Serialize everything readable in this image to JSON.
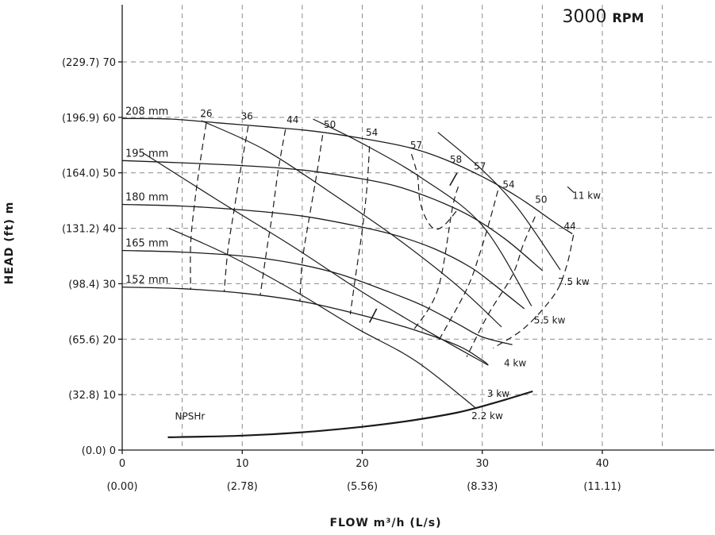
{
  "chart_data": {
    "type": "line",
    "speed_value": "3000",
    "speed_unit": "RPM",
    "xlabel": "FLOW m³/h (L/s)",
    "ylabel": "HEAD (ft) m",
    "xlim": [
      0,
      50
    ],
    "ylim": [
      0,
      80
    ],
    "grid": true,
    "x_ticks": [
      0,
      10,
      20,
      30,
      40
    ],
    "x_tick_labels": [
      "0",
      "10",
      "20",
      "30",
      "40"
    ],
    "x_tick_sublabels": [
      "(0.00)",
      "(2.78)",
      "(5.56)",
      "(8.33)",
      "(11.11)"
    ],
    "x_grid": [
      0,
      5,
      10,
      15,
      20,
      25,
      30,
      35,
      40,
      45
    ],
    "y_ticks": [
      0,
      10,
      20,
      30,
      40,
      50,
      60,
      70
    ],
    "y_tick_labels": [
      "(0.0) 0",
      "(32.8) 10",
      "(65.6) 20",
      "(98.4) 30",
      "(131.2) 40",
      "(164.0) 50",
      "(196.9) 60",
      "(229.7) 70"
    ],
    "head_curves": [
      {
        "name": "208 mm",
        "x": [
          0,
          4,
          8,
          12,
          16,
          20,
          24,
          27,
          30,
          33,
          36,
          37.5
        ],
        "y": [
          59.8,
          59.7,
          59.0,
          58.3,
          57.5,
          56.2,
          54.5,
          52.3,
          49.3,
          45.6,
          41.1,
          39.0
        ]
      },
      {
        "name": "195 mm",
        "x": [
          0,
          5,
          10,
          15,
          20,
          23,
          26,
          29,
          32,
          35
        ],
        "y": [
          52.2,
          51.8,
          51.3,
          50.5,
          48.9,
          47.5,
          45.2,
          42.2,
          37.9,
          32.4
        ]
      },
      {
        "name": "180 mm",
        "x": [
          0,
          5,
          10,
          15,
          20,
          23,
          26,
          29,
          31,
          33.5
        ],
        "y": [
          44.3,
          44.0,
          43.3,
          42.2,
          40.2,
          38.6,
          36.3,
          33.0,
          29.8,
          25.5
        ]
      },
      {
        "name": "165 mm",
        "x": [
          0,
          5,
          10,
          14,
          18,
          22,
          25,
          28,
          30,
          32.5
        ],
        "y": [
          36.0,
          35.7,
          35.0,
          33.8,
          31.8,
          28.7,
          26.1,
          22.7,
          20.4,
          19.0
        ]
      },
      {
        "name": "152 mm",
        "x": [
          0,
          5,
          10,
          15,
          20,
          24,
          28,
          30,
          30.5
        ],
        "y": [
          29.4,
          29.1,
          28.3,
          26.8,
          24.3,
          21.9,
          18.8,
          16.2,
          15.3
        ]
      }
    ],
    "efficiency_curves": [
      {
        "label": "26",
        "x": [
          7,
          6.5,
          6.0,
          5.7,
          5.7
        ],
        "y": [
          58.9,
          52.0,
          44.0,
          37.0,
          29.0
        ]
      },
      {
        "label": "36",
        "x": [
          10.5,
          9.9,
          9.3,
          8.8,
          8.5
        ],
        "y": [
          58.4,
          51.0,
          43.0,
          36.0,
          28.7
        ]
      },
      {
        "label": "44",
        "x": [
          13.6,
          13.0,
          12.5,
          12.0,
          11.5
        ],
        "y": [
          57.8,
          50.5,
          42.5,
          35.5,
          27.9
        ]
      },
      {
        "label": "50",
        "x": [
          16.7,
          16.2,
          15.6,
          15.0,
          14.8
        ],
        "y": [
          56.8,
          49.7,
          42.1,
          34.0,
          26.8
        ]
      },
      {
        "label": "54",
        "x": [
          20.6,
          20.4,
          20.0,
          19.5,
          19.0
        ],
        "y": [
          54.8,
          47.5,
          39.7,
          32.2,
          24.5
        ]
      },
      {
        "label": "57 (inner)",
        "x": [
          24.1,
          24.6,
          24.8,
          25.3,
          26.0,
          26.8,
          28.0
        ],
        "y": [
          53.4,
          49.5,
          45.0,
          41.8,
          39.9,
          40.5,
          43.5
        ]
      },
      {
        "label": "57",
        "x": [
          28.0,
          27.5,
          26.3,
          24.3
        ],
        "y": [
          47.5,
          43.5,
          29.0,
          21.7
        ]
      },
      {
        "label": "54",
        "x": [
          31.3,
          30.7,
          29.8,
          28.7,
          26.3
        ],
        "y": [
          46.8,
          42.0,
          35.5,
          29.0,
          19.5
        ]
      },
      {
        "label": "50",
        "x": [
          34.4,
          33.4,
          32.5,
          30.5,
          28.7
        ],
        "y": [
          42.1,
          37.0,
          31.5,
          24.5,
          16.8
        ]
      },
      {
        "label": "44",
        "x": [
          37.6,
          37.0,
          36.0,
          33.5,
          30.9
        ],
        "y": [
          38.8,
          33.0,
          28.0,
          22.0,
          18.4
        ]
      }
    ],
    "efficiency_labels": [
      {
        "text": "26",
        "x": 7.0,
        "y": 60.1
      },
      {
        "text": "36",
        "x": 10.4,
        "y": 59.6
      },
      {
        "text": "44",
        "x": 14.2,
        "y": 59.0
      },
      {
        "text": "50",
        "x": 17.3,
        "y": 58.1
      },
      {
        "text": "54",
        "x": 20.8,
        "y": 56.7
      },
      {
        "text": "57",
        "x": 24.5,
        "y": 54.4
      },
      {
        "text": "58",
        "x": 27.8,
        "y": 51.8
      },
      {
        "text": "57",
        "x": 29.8,
        "y": 50.6
      },
      {
        "text": "54",
        "x": 32.2,
        "y": 47.3
      },
      {
        "text": "50",
        "x": 34.9,
        "y": 44.6
      },
      {
        "text": "44",
        "x": 37.3,
        "y": 39.8
      }
    ],
    "power_curves": [
      {
        "name": "11 kw",
        "x": [
          37.1,
          37.6
        ],
        "y": [
          47.5,
          46.5
        ]
      },
      {
        "name": "7.5 kw",
        "x": [
          26.3,
          30.0,
          33.0,
          36.5
        ],
        "y": [
          57.3,
          50.5,
          43.5,
          32.5
        ]
      },
      {
        "name": "5.5 kw",
        "x": [
          15.9,
          20.0,
          25.0,
          30.0,
          34.1
        ],
        "y": [
          59.7,
          55.3,
          49.0,
          40.5,
          26.0
        ]
      },
      {
        "name": "4 kw",
        "x": [
          6.6,
          12.0,
          18.0,
          23.0,
          28.0,
          31.6
        ],
        "y": [
          59.4,
          54.0,
          45.5,
          38.0,
          29.5,
          22.2
        ]
      },
      {
        "name": "3 kw",
        "x": [
          1.8,
          8.0,
          14.0,
          20.0,
          25.0,
          30.5
        ],
        "y": [
          53.5,
          45.0,
          37.0,
          28.5,
          22.0,
          15.3
        ]
      },
      {
        "name": "2.2 kw",
        "x": [
          3.9,
          9.0,
          14.5,
          19.5,
          24.5,
          29.5
        ],
        "y": [
          40.0,
          35.0,
          28.5,
          22.0,
          16.0,
          7.5
        ]
      }
    ],
    "power_labels": [
      {
        "text": "11 kw",
        "x": 37.5,
        "y": 45.3
      },
      {
        "text": "7.5 kw",
        "x": 36.3,
        "y": 29.8
      },
      {
        "text": "5.5 kw",
        "x": 34.3,
        "y": 22.8
      },
      {
        "text": "4 kw",
        "x": 31.8,
        "y": 15.1
      },
      {
        "text": "3 kw",
        "x": 30.4,
        "y": 9.6
      },
      {
        "text": "2.2 kw",
        "x": 29.1,
        "y": 5.6
      }
    ],
    "npshr": {
      "name": "NPSHr",
      "x": [
        3.8,
        10,
        15,
        20,
        24,
        28,
        31,
        34.2
      ],
      "y": [
        2.3,
        2.6,
        3.2,
        4.2,
        5.3,
        6.8,
        8.5,
        10.6
      ]
    },
    "npshr_label_pos": {
      "x": 4.4,
      "y": 5.5
    },
    "marks": [
      {
        "x": [
          27.3,
          27.9
        ],
        "y": [
          47.7,
          50.0
        ]
      },
      {
        "x": [
          20.6,
          21.2
        ],
        "y": [
          23.0,
          25.5
        ]
      }
    ]
  }
}
